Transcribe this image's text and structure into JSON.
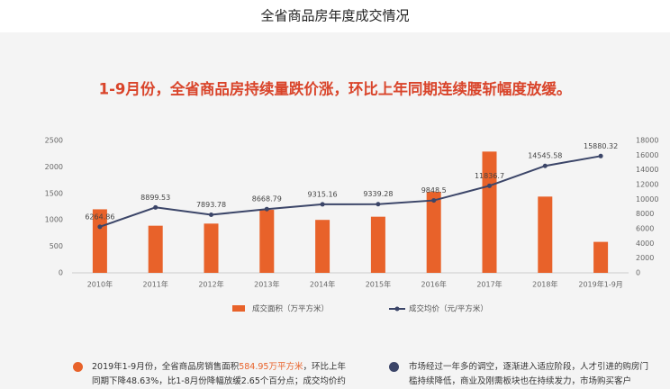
{
  "chart_data": {
    "type": "bar-line",
    "title": "全省商品房年度成交情况",
    "subtitle": "1-9月份，全省商品房持续量跌价涨，环比上年同期连续腰斩幅度放缓。",
    "categories": [
      "2010年",
      "2011年",
      "2012年",
      "2013年",
      "2014年",
      "2015年",
      "2016年",
      "2017年",
      "2018年",
      "2019年1-9月"
    ],
    "series": [
      {
        "name": "成交面积（万平方米）",
        "type": "bar",
        "color": "#e8622a",
        "values": [
          1200,
          890,
          930,
          1190,
          1000,
          1060,
          1530,
          2290,
          1440,
          584.95
        ]
      },
      {
        "name": "成交均价（元/平方米）",
        "type": "line",
        "axis": "y2",
        "color": "#3b4568",
        "values": [
          6264.86,
          8899.53,
          7893.78,
          8668.79,
          9315.16,
          9339.28,
          9848.5,
          11836.7,
          14545.58,
          15880.32
        ]
      }
    ],
    "ylim": [
      0,
      2500
    ],
    "yticks": [
      0,
      500,
      1000,
      1500,
      2000,
      2500
    ],
    "y2lim": [
      0,
      18000
    ],
    "y2ticks": [
      0,
      2000,
      4000,
      6000,
      8000,
      10000,
      12000,
      14000,
      16000,
      18000
    ],
    "grid": false
  },
  "notes": [
    [
      "2019年1-9月份，全省商品房销售面积",
      "584.95万平方米",
      "，环比上年同期下降48.63%，比1-8月份降幅放缓2.65个百分点；成交均价约"
    ],
    [
      "市场经过一年多的调空，逐渐进入适应阶段，人才引进的购房门槛持续降低，商业及刚需板块也在持续发力，市场购买客户"
    ]
  ]
}
